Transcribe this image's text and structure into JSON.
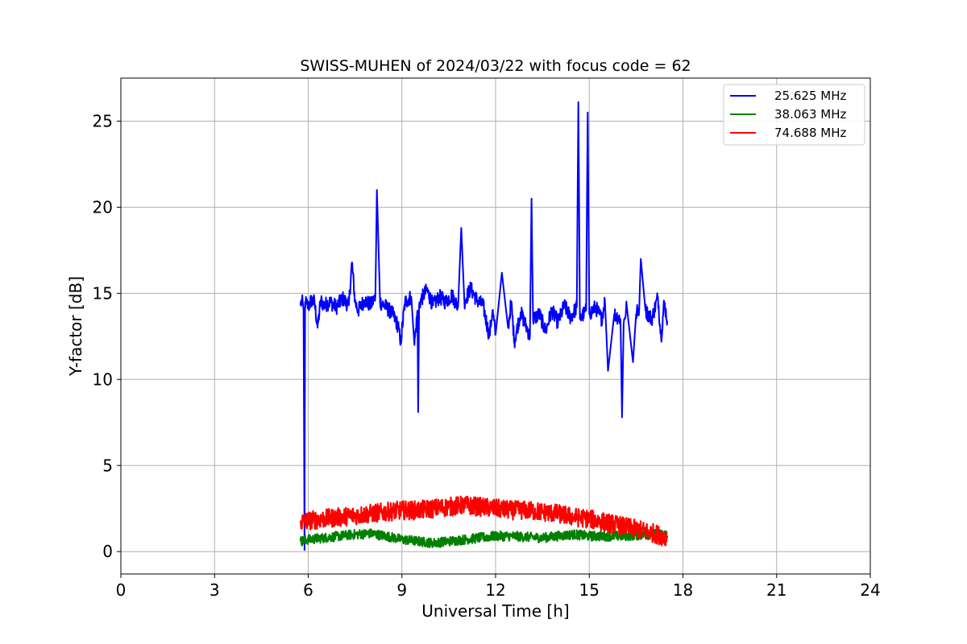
{
  "chart_data": {
    "type": "line",
    "title": "SWISS-MUHEN of 2024/03/22 with focus code = 62",
    "xlabel": "Universal Time [h]",
    "ylabel": "Y-factor [dB]",
    "xlim": [
      0,
      24
    ],
    "ylim": [
      -1.3,
      27.5
    ],
    "xticks": [
      0,
      3,
      6,
      9,
      12,
      15,
      18,
      21,
      24
    ],
    "yticks": [
      0,
      5,
      10,
      15,
      20,
      25
    ],
    "grid": true,
    "legend_position": "top-right",
    "series": [
      {
        "name": "25.625 MHz",
        "color": "#0000ff",
        "x": [
          5.75,
          5.8,
          5.85,
          5.88,
          5.9,
          5.95,
          6.0,
          6.1,
          6.2,
          6.3,
          6.4,
          6.5,
          6.7,
          6.9,
          7.1,
          7.3,
          7.4,
          7.5,
          7.6,
          7.8,
          8.0,
          8.15,
          8.2,
          8.3,
          8.5,
          8.7,
          8.9,
          8.95,
          9.1,
          9.3,
          9.4,
          9.5,
          9.52,
          9.55,
          9.6,
          9.8,
          10.0,
          10.2,
          10.4,
          10.6,
          10.8,
          10.9,
          11.0,
          11.2,
          11.4,
          11.6,
          11.8,
          11.9,
          12.0,
          12.2,
          12.4,
          12.5,
          12.6,
          12.8,
          13.0,
          13.1,
          13.15,
          13.2,
          13.4,
          13.6,
          13.8,
          14.0,
          14.2,
          14.4,
          14.6,
          14.65,
          14.7,
          14.9,
          14.95,
          15.0,
          15.2,
          15.4,
          15.5,
          15.6,
          15.8,
          16.0,
          16.05,
          16.1,
          16.2,
          16.4,
          16.5,
          16.6,
          16.65,
          16.8,
          17.0,
          17.2,
          17.3,
          17.4,
          17.5
        ],
        "y": [
          14.3,
          14.6,
          14.0,
          0.1,
          14.5,
          14.4,
          14.2,
          14.6,
          14.5,
          13.0,
          14.6,
          14.3,
          14.5,
          14.2,
          14.7,
          14.3,
          16.8,
          14.5,
          14.0,
          14.6,
          14.3,
          14.8,
          21.0,
          14.5,
          14.2,
          13.8,
          13.0,
          12.0,
          14.5,
          14.8,
          12.0,
          14.0,
          8.1,
          14.3,
          14.6,
          15.2,
          14.3,
          14.8,
          14.5,
          14.9,
          14.2,
          18.8,
          14.5,
          15.3,
          14.6,
          14.3,
          12.5,
          14.0,
          12.6,
          16.2,
          13.0,
          14.5,
          12.2,
          13.9,
          13.0,
          12.5,
          20.5,
          13.5,
          13.8,
          12.8,
          14.0,
          13.3,
          14.3,
          13.6,
          14.2,
          26.1,
          13.5,
          14.0,
          25.5,
          13.8,
          14.2,
          13.5,
          14.6,
          10.5,
          13.8,
          13.5,
          7.8,
          13.2,
          14.3,
          11.0,
          13.8,
          14.2,
          17.0,
          14.0,
          13.5,
          14.8,
          12.4,
          14.5,
          13.4
        ]
      },
      {
        "name": "38.063 MHz",
        "color": "#008000",
        "x": [
          5.75,
          6.0,
          6.5,
          7.0,
          7.5,
          8.0,
          8.5,
          9.0,
          9.5,
          10.0,
          10.5,
          11.0,
          11.5,
          12.0,
          12.5,
          13.0,
          13.5,
          14.0,
          14.5,
          15.0,
          15.5,
          16.0,
          16.5,
          17.0,
          17.5
        ],
        "y": [
          0.6,
          0.7,
          0.8,
          0.9,
          1.0,
          1.05,
          0.9,
          0.7,
          0.6,
          0.5,
          0.6,
          0.7,
          0.8,
          0.9,
          0.9,
          0.85,
          0.8,
          0.9,
          1.0,
          0.9,
          0.9,
          0.9,
          0.95,
          1.0,
          1.0
        ]
      },
      {
        "name": "74.688 MHz",
        "color": "#ff0000",
        "x": [
          5.75,
          6.0,
          6.5,
          7.0,
          7.5,
          8.0,
          8.5,
          9.0,
          9.5,
          10.0,
          10.5,
          11.0,
          11.5,
          12.0,
          12.5,
          13.0,
          13.5,
          14.0,
          14.5,
          15.0,
          15.5,
          16.0,
          16.5,
          17.0,
          17.5
        ],
        "y": [
          1.7,
          1.8,
          1.9,
          2.0,
          2.1,
          2.2,
          2.3,
          2.4,
          2.4,
          2.5,
          2.6,
          2.7,
          2.6,
          2.5,
          2.4,
          2.4,
          2.3,
          2.2,
          2.0,
          1.9,
          1.7,
          1.5,
          1.3,
          1.1,
          0.8
        ]
      }
    ]
  }
}
